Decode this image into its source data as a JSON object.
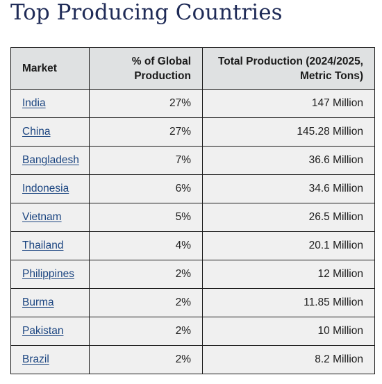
{
  "page": {
    "title": "Top Producing Countries"
  },
  "table": {
    "headers": {
      "market": "Market",
      "share": "% of Global Production",
      "total": "Total Production (2024/2025, Metric Tons)"
    },
    "rows": [
      {
        "market": "India",
        "share": "27%",
        "total": "147 Million"
      },
      {
        "market": "China",
        "share": "27%",
        "total": "145.28 Million"
      },
      {
        "market": "Bangladesh",
        "share": "7%",
        "total": "36.6 Million"
      },
      {
        "market": "Indonesia",
        "share": "6%",
        "total": "34.6 Million"
      },
      {
        "market": "Vietnam",
        "share": "5%",
        "total": "26.5 Million"
      },
      {
        "market": "Thailand",
        "share": "4%",
        "total": "20.1 Million"
      },
      {
        "market": "Philippines",
        "share": "2%",
        "total": "12 Million"
      },
      {
        "market": "Burma",
        "share": "2%",
        "total": "11.85 Million"
      },
      {
        "market": "Pakistan",
        "share": "2%",
        "total": "10 Million"
      },
      {
        "market": "Brazil",
        "share": "2%",
        "total": "8.2 Million"
      }
    ]
  }
}
